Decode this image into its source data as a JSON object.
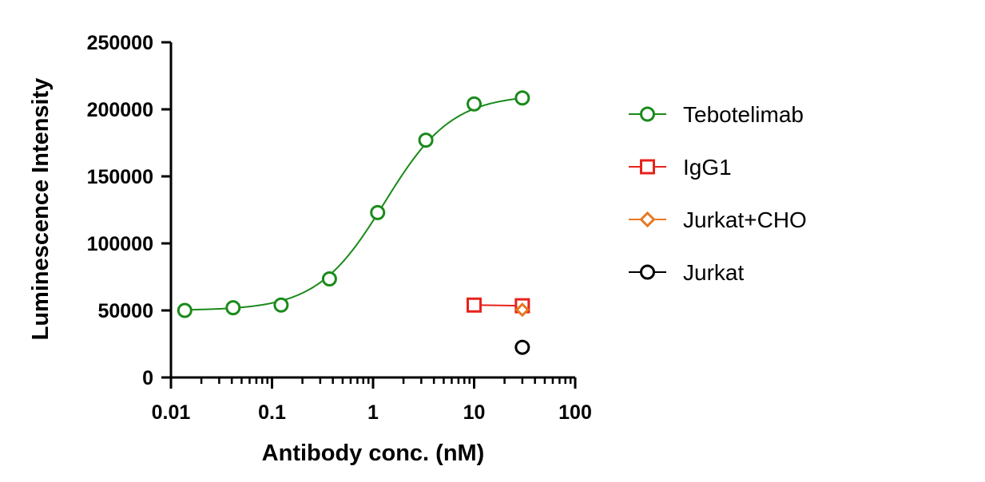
{
  "chart_data": {
    "type": "scatter",
    "title": "",
    "xlabel": "Antibody conc. (nM)",
    "ylabel": "Luminescence Intensity",
    "xscale": "log",
    "xlim": [
      0.01,
      100
    ],
    "ylim": [
      0,
      250000
    ],
    "x_ticks": [
      "0.01",
      "0.1",
      "1",
      "10",
      "100"
    ],
    "y_ticks": [
      "0",
      "50000",
      "100000",
      "150000",
      "200000",
      "250000"
    ],
    "grid": false,
    "legend_position": "right",
    "series": [
      {
        "name": "Tebotelimab",
        "color": "#1a8a1a",
        "marker": "circle",
        "fit_curve": true,
        "points": [
          {
            "x": 0.0137,
            "y": 50000
          },
          {
            "x": 0.0412,
            "y": 52000
          },
          {
            "x": 0.123,
            "y": 54000
          },
          {
            "x": 0.37,
            "y": 73500
          },
          {
            "x": 1.11,
            "y": 123000
          },
          {
            "x": 3.33,
            "y": 177000
          },
          {
            "x": 10,
            "y": 204000
          },
          {
            "x": 30,
            "y": 208500
          }
        ],
        "fit": {
          "bottom": 50000,
          "top": 211000,
          "ec50": 1.3,
          "hill": 1.3
        }
      },
      {
        "name": "IgG1",
        "color": "#e8221c",
        "marker": "square",
        "fit_curve": false,
        "line": true,
        "points": [
          {
            "x": 10,
            "y": 54000
          },
          {
            "x": 30,
            "y": 53500
          }
        ]
      },
      {
        "name": "Jurkat+CHO",
        "color": "#e87722",
        "marker": "diamond",
        "fit_curve": false,
        "line": true,
        "points": [
          {
            "x": 30,
            "y": 50500
          }
        ]
      },
      {
        "name": "Jurkat",
        "color": "#000000",
        "marker": "circle",
        "fit_curve": false,
        "line": true,
        "points": [
          {
            "x": 30,
            "y": 22500
          }
        ]
      }
    ]
  }
}
